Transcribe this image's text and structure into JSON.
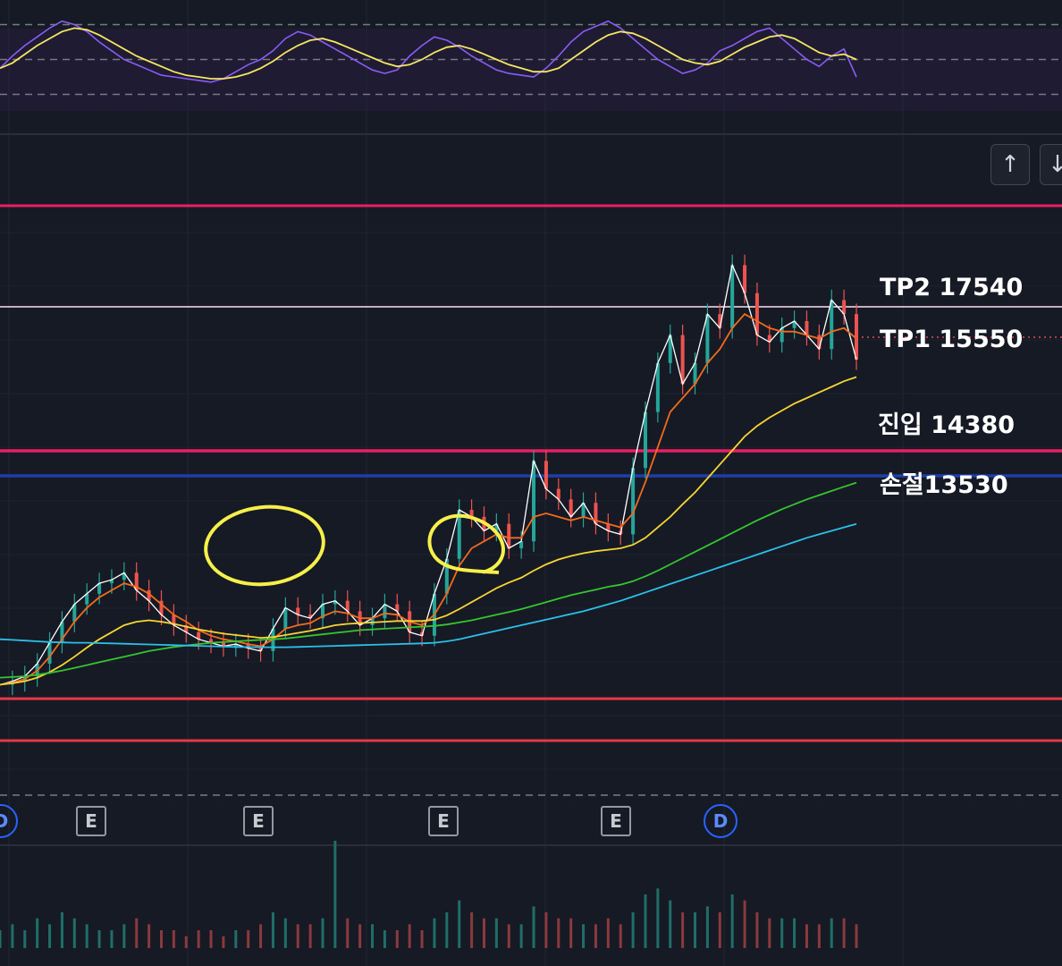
{
  "chart_data": {
    "type": "line",
    "title": "",
    "xlabel": "",
    "ylabel": "",
    "ylim": [
      11500,
      19500
    ],
    "grid": true,
    "series": [
      {
        "values": [
          12300,
          12350,
          12420,
          12600,
          12900,
          13200,
          13450,
          13600,
          13750,
          13800,
          13900,
          13650,
          13500,
          13300,
          13150,
          13050,
          12950,
          12900,
          12850,
          12880,
          12820,
          12780,
          13100,
          13400,
          13300,
          13250,
          13450,
          13500,
          13350,
          13150,
          13250,
          13450,
          13350,
          13050,
          13000,
          13600,
          14100,
          14800,
          14700,
          14500,
          14600,
          14250,
          14350,
          15500,
          15100,
          14950,
          14700,
          14900,
          14600,
          14500,
          14450,
          15400,
          16200,
          16900,
          17300,
          16600,
          16900,
          17600,
          17400,
          18300,
          17900,
          17300,
          17200,
          17400,
          17500,
          17300,
          17100,
          17800,
          17600,
          16950
        ]
      },
      {
        "values": [
          12300,
          12330,
          12380,
          12500,
          12700,
          12950,
          13200,
          13400,
          13550,
          13650,
          13750,
          13700,
          13600,
          13450,
          13300,
          13200,
          13080,
          13000,
          12950,
          12920,
          12880,
          12850,
          12950,
          13100,
          13150,
          13180,
          13280,
          13350,
          13320,
          13250,
          13250,
          13320,
          13300,
          13200,
          13150,
          13300,
          13600,
          14000,
          14250,
          14350,
          14450,
          14400,
          14400,
          14700,
          14750,
          14700,
          14650,
          14700,
          14650,
          14600,
          14550,
          14750,
          15200,
          15700,
          16200,
          16400,
          16600,
          16900,
          17100,
          17400,
          17600,
          17500,
          17400,
          17350,
          17350,
          17300,
          17250,
          17350,
          17400,
          17250
        ]
      },
      {
        "values": [
          12300,
          12320,
          12350,
          12400,
          12480,
          12580,
          12700,
          12830,
          12950,
          13050,
          13150,
          13200,
          13220,
          13200,
          13170,
          13130,
          13090,
          13060,
          13030,
          13010,
          12990,
          12970,
          12980,
          13010,
          13040,
          13070,
          13110,
          13150,
          13170,
          13180,
          13190,
          13200,
          13210,
          13210,
          13210,
          13230,
          13290,
          13380,
          13480,
          13580,
          13680,
          13760,
          13830,
          13930,
          14020,
          14090,
          14140,
          14180,
          14210,
          14230,
          14250,
          14300,
          14400,
          14550,
          14700,
          14880,
          15050,
          15250,
          15450,
          15650,
          15850,
          16000,
          16120,
          16220,
          16320,
          16400,
          16480,
          16560,
          16640,
          16700
        ]
      },
      {
        "values": [
          12400,
          12410,
          12420,
          12440,
          12470,
          12500,
          12540,
          12580,
          12620,
          12660,
          12700,
          12740,
          12780,
          12810,
          12840,
          12860,
          12880,
          12900,
          12910,
          12920,
          12930,
          12940,
          12950,
          12960,
          12980,
          13000,
          13020,
          13040,
          13060,
          13080,
          13090,
          13100,
          13110,
          13120,
          13130,
          13140,
          13160,
          13190,
          13220,
          13260,
          13300,
          13340,
          13380,
          13430,
          13480,
          13530,
          13580,
          13620,
          13660,
          13700,
          13730,
          13780,
          13850,
          13930,
          14020,
          14110,
          14200,
          14290,
          14380,
          14470,
          14560,
          14650,
          14730,
          14810,
          14880,
          14950,
          15010,
          15070,
          15130,
          15190
        ]
      },
      {
        "values": [
          12950,
          12940,
          12930,
          12920,
          12910,
          12905,
          12900,
          12900,
          12895,
          12890,
          12885,
          12880,
          12875,
          12870,
          12865,
          12860,
          12855,
          12850,
          12845,
          12840,
          12838,
          12836,
          12835,
          12835,
          12840,
          12845,
          12850,
          12855,
          12860,
          12865,
          12870,
          12875,
          12880,
          12885,
          12890,
          12900,
          12920,
          12950,
          12990,
          13030,
          13070,
          13110,
          13150,
          13190,
          13230,
          13270,
          13310,
          13350,
          13400,
          13450,
          13500,
          13560,
          13620,
          13680,
          13740,
          13800,
          13860,
          13920,
          13980,
          14040,
          14100,
          14160,
          14220,
          14280,
          14340,
          14400,
          14450,
          14500,
          14550,
          14600
        ]
      }
    ],
    "rsi": {
      "ylim": [
        20,
        80
      ],
      "bands": [
        70,
        50,
        30
      ],
      "rsi_values": [
        45,
        52,
        58,
        63,
        68,
        72,
        70,
        66,
        60,
        55,
        50,
        47,
        44,
        41,
        40,
        39,
        38,
        37,
        39,
        43,
        47,
        50,
        55,
        62,
        66,
        64,
        60,
        56,
        52,
        48,
        44,
        42,
        44,
        52,
        58,
        63,
        61,
        57,
        52,
        48,
        44,
        42,
        41,
        40,
        45,
        52,
        60,
        66,
        69,
        72,
        68,
        62,
        56,
        50,
        46,
        42,
        44,
        48,
        55,
        58,
        62,
        66,
        68,
        62,
        56,
        50,
        46,
        52,
        56,
        40
      ],
      "ma_values": [
        45,
        48,
        53,
        58,
        62,
        66,
        68,
        67,
        64,
        60,
        56,
        52,
        49,
        46,
        43,
        41,
        40,
        39,
        39,
        40,
        42,
        45,
        49,
        54,
        58,
        61,
        62,
        60,
        57,
        54,
        51,
        48,
        46,
        47,
        50,
        54,
        57,
        58,
        56,
        53,
        50,
        47,
        45,
        43,
        43,
        45,
        50,
        55,
        60,
        64,
        66,
        65,
        62,
        58,
        54,
        50,
        48,
        47,
        49,
        53,
        57,
        60,
        63,
        64,
        62,
        58,
        54,
        52,
        53,
        50
      ]
    },
    "volume": {
      "values": [
        3,
        4,
        3,
        5,
        4,
        6,
        5,
        4,
        3,
        3,
        4,
        5,
        4,
        3,
        3,
        2,
        3,
        3,
        2,
        3,
        3,
        4,
        6,
        5,
        4,
        4,
        5,
        18,
        5,
        4,
        4,
        3,
        3,
        4,
        3,
        5,
        6,
        8,
        6,
        5,
        5,
        4,
        4,
        7,
        6,
        5,
        5,
        4,
        4,
        5,
        4,
        6,
        9,
        10,
        8,
        6,
        6,
        7,
        6,
        9,
        8,
        6,
        5,
        5,
        5,
        4,
        4,
        5,
        5,
        4
      ]
    },
    "levels": [
      {
        "label": "TP2 17540",
        "value": 17540,
        "color": "#ffe0f0"
      },
      {
        "label": "TP1 15550",
        "value": 15550,
        "color": "#e24a59"
      },
      {
        "label": "진입 14380",
        "value": 14380,
        "color": "#e91e63"
      },
      {
        "label": "손절13530",
        "value": 13530,
        "color": "#1e3fa8"
      }
    ],
    "extra_lines": [
      {
        "value": 19150,
        "color": "#e91e63"
      },
      {
        "value": 12100,
        "color": "#e53945"
      },
      {
        "value": 11500,
        "color": "#e53945"
      }
    ],
    "events": [
      "D",
      "E",
      "E",
      "E",
      "E",
      "D"
    ]
  },
  "ui": {
    "scroll_up_icon": "↑",
    "scroll_down_icon": "↓"
  }
}
